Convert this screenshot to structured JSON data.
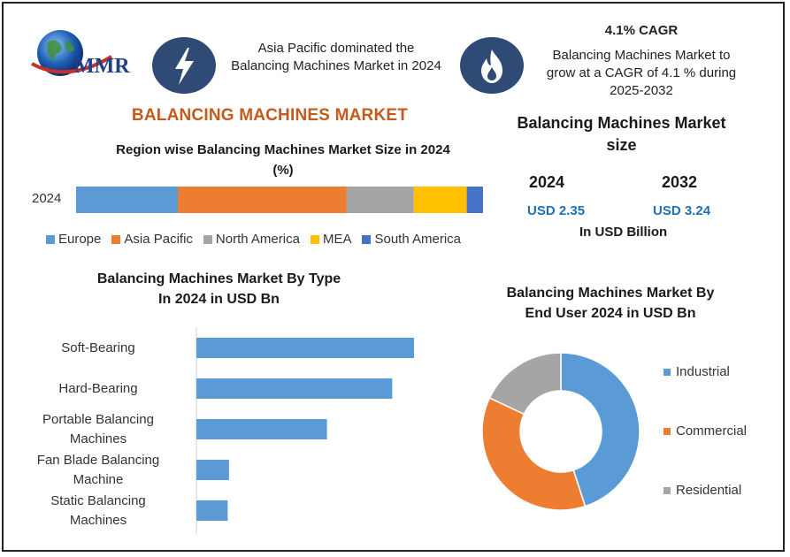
{
  "colors": {
    "blue": "#5b9bd5",
    "orange": "#ed7d31",
    "gray": "#a5a5a5",
    "yellow": "#ffc000",
    "darkblue": "#4472c4",
    "title_orange": "#c45a1c",
    "icon_bg": "#2f4a75",
    "value_blue": "#1d6fb8"
  },
  "logo": {
    "text": "MMR",
    "icon": "globe-icon"
  },
  "header": {
    "dominance_text_line1": "Asia Pacific dominated the",
    "dominance_text_line2": "Balancing Machines Market in 2024",
    "dominance_icon": "lightning-icon",
    "cagr_title": "4.1% CAGR",
    "cagr_line1": "Balancing Machines Market to",
    "cagr_line2": "grow at a CAGR of 4.1 % during",
    "cagr_line3": "2025-2032",
    "cagr_icon": "flame-icon"
  },
  "main_title": "BALANCING MACHINES MARKET",
  "market_size": {
    "title_line1": "Balancing Machines Market",
    "title_line2": "size",
    "year1": "2024",
    "value1": "USD 2.35",
    "year2": "2032",
    "value2": "USD 3.24",
    "unit": "In USD Billion"
  },
  "chart_data": [
    {
      "type": "bar",
      "orientation": "horizontal-stacked",
      "title_line1": "Region wise Balancing Machines Market Size in 2024",
      "title_line2": "(%)",
      "categories": [
        "2024"
      ],
      "series": [
        {
          "name": "Europe",
          "values": [
            25
          ],
          "color": "#5b9bd5"
        },
        {
          "name": "Asia Pacific",
          "values": [
            41.5
          ],
          "color": "#ed7d31"
        },
        {
          "name": "North America",
          "values": [
            16.5
          ],
          "color": "#a5a5a5"
        },
        {
          "name": "MEA",
          "values": [
            13
          ],
          "color": "#ffc000"
        },
        {
          "name": "South America",
          "values": [
            4
          ],
          "color": "#4472c4"
        }
      ],
      "legend": "bottom"
    },
    {
      "type": "bar",
      "orientation": "horizontal",
      "title_line1": "Balancing Machines Market By Type",
      "title_line2": "In 2024 in USD Bn",
      "categories": [
        [
          "Soft-Bearing"
        ],
        [
          "Hard-Bearing"
        ],
        [
          "Portable Balancing",
          "Machines"
        ],
        [
          "Fan Blade Balancing",
          "Machine"
        ],
        [
          "Static Balancing",
          "Machines"
        ]
      ],
      "values": [
        0.8,
        0.72,
        0.48,
        0.12,
        0.115
      ],
      "color": "#5b9bd5"
    },
    {
      "type": "pie",
      "variant": "donut",
      "title_line1": "Balancing Machines Market By",
      "title_line2": "End User 2024 in USD Bn",
      "labels": [
        "Industrial",
        "Commercial",
        "Residential"
      ],
      "values": [
        45,
        37,
        18
      ],
      "colors": [
        "#5b9bd5",
        "#ed7d31",
        "#a5a5a5"
      ],
      "legend": "right"
    }
  ]
}
